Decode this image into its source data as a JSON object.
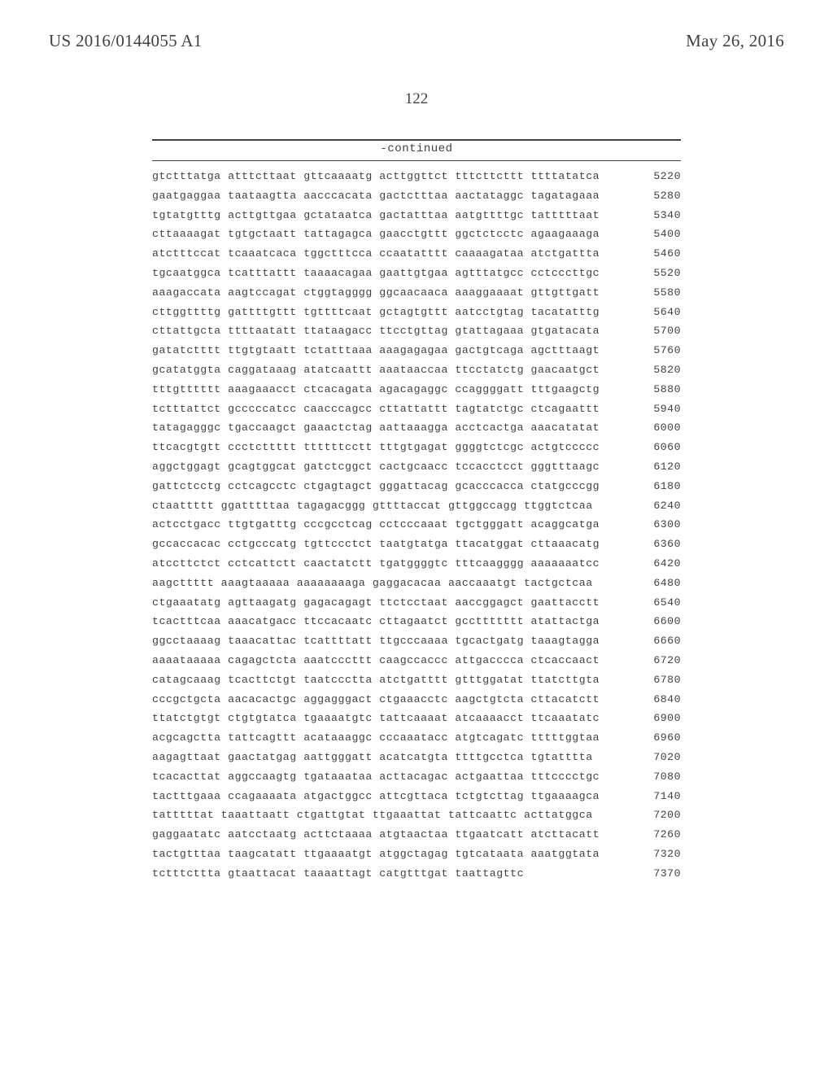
{
  "header": {
    "patent_number": "US 2016/0144055 A1",
    "date": "May 26, 2016"
  },
  "page_number": "122",
  "continued_label": "-continued",
  "sequence": {
    "rows": [
      {
        "seq": "gtctttatga atttcttaat gttcaaaatg acttggttct tttcttcttt ttttatatca",
        "pos": "5220"
      },
      {
        "seq": "gaatgaggaa taataagtta aacccacata gactctttaa aactataggc tagatagaaa",
        "pos": "5280"
      },
      {
        "seq": "tgtatgtttg acttgttgaa gctataatca gactatttaa aatgttttgc tatttttaat",
        "pos": "5340"
      },
      {
        "seq": "cttaaaagat tgtgctaatt tattagagca gaacctgttt ggctctcctc agaagaaaga",
        "pos": "5400"
      },
      {
        "seq": "atctttccat tcaaatcaca tggctttcca ccaatatttt caaaagataa atctgattta",
        "pos": "5460"
      },
      {
        "seq": "tgcaatggca tcatttattt taaaacagaa gaattgtgaa agtttatgcc cctcccttgc",
        "pos": "5520"
      },
      {
        "seq": "aaagaccata aagtccagat ctggtagggg ggcaacaaca aaaggaaaat gttgttgatt",
        "pos": "5580"
      },
      {
        "seq": "cttggttttg gattttgttt tgttttcaat gctagtgttt aatcctgtag tacatatttg",
        "pos": "5640"
      },
      {
        "seq": "cttattgcta ttttaatatt ttataagacc ttcctgttag gtattagaaa gtgatacata",
        "pos": "5700"
      },
      {
        "seq": "gatatctttt ttgtgtaatt tctatttaaa aaagagagaa gactgtcaga agctttaagt",
        "pos": "5760"
      },
      {
        "seq": "gcatatggta caggataaag atatcaattt aaataaccaa ttcctatctg gaacaatgct",
        "pos": "5820"
      },
      {
        "seq": "tttgtttttt aaagaaacct ctcacagata agacagaggc ccaggggatt tttgaagctg",
        "pos": "5880"
      },
      {
        "seq": "tctttattct gcccccatcc caacccagcc cttattattt tagtatctgc ctcagaattt",
        "pos": "5940"
      },
      {
        "seq": "tatagagggc tgaccaagct gaaactctag aattaaagga acctcactga aaacatatat",
        "pos": "6000"
      },
      {
        "seq": "ttcacgtgtt ccctcttttt ttttttcctt tttgtgagat ggggtctcgc actgtccccc",
        "pos": "6060"
      },
      {
        "seq": "aggctggagt gcagtggcat gatctcggct cactgcaacc tccacctcct gggtttaagc",
        "pos": "6120"
      },
      {
        "seq": "gattctcctg cctcagcctc ctgagtagct gggattacag gcacccacca ctatgcccgg",
        "pos": "6180"
      },
      {
        "seq": "ctaattttt ggatttttaa tagagacggg gttttaccat gttggccagg ttggtctcaa",
        "pos": "6240"
      },
      {
        "seq": "actcctgacc ttgtgatttg cccgcctcag cctcccaaat tgctgggatt acaggcatga",
        "pos": "6300"
      },
      {
        "seq": "gccaccacac cctgcccatg tgttccctct taatgtatga ttacatggat cttaaacatg",
        "pos": "6360"
      },
      {
        "seq": "atccttctct cctcattctt caactatctt tgatggggtc tttcaagggg aaaaaaatcc",
        "pos": "6420"
      },
      {
        "seq": "aagcttttt aaagtaaaaa aaaaaaaaga gaggacacaa aaccaaatgt tactgctcaa",
        "pos": "6480"
      },
      {
        "seq": "ctgaaatatg agttaagatg gagacagagt ttctcctaat aaccggagct gaattacctt",
        "pos": "6540"
      },
      {
        "seq": "tcactttcaa aaacatgacc ttccacaatc cttagaatct gccttttttt atattactga",
        "pos": "6600"
      },
      {
        "seq": "ggcctaaaag taaacattac tcattttatt ttgcccaaaa tgcactgatg taaagtagga",
        "pos": "6660"
      },
      {
        "seq": "aaaataaaaa cagagctcta aaatcccttt caagccaccc attgacccca ctcaccaact",
        "pos": "6720"
      },
      {
        "seq": "catagcaaag tcacttctgt taatccctta atctgatttt gtttggatat ttatcttgta",
        "pos": "6780"
      },
      {
        "seq": "cccgctgcta aacacactgc aggagggact ctgaaacctc aagctgtcta cttacatctt",
        "pos": "6840"
      },
      {
        "seq": "ttatctgtgt ctgtgtatca tgaaaatgtc tattcaaaat atcaaaacct ttcaaatatc",
        "pos": "6900"
      },
      {
        "seq": "acgcagctta tattcagttt acataaaggc cccaaatacc atgtcagatc tttttggtaa",
        "pos": "6960"
      },
      {
        "seq": "aagagttaat gaactatgag aattgggatt acatcatgta ttttgcctca tgtatttta",
        "pos": "7020"
      },
      {
        "seq": "tcacacttat aggccaagtg tgataaataa acttacagac actgaattaa tttcccctgc",
        "pos": "7080"
      },
      {
        "seq": "tactttgaaa ccagaaaata atgactggcc attcgttaca tctgtcttag ttgaaaagca",
        "pos": "7140"
      },
      {
        "seq": "tatttttat taaattaatt ctgattgtat ttgaaattat tattcaattc acttatggca",
        "pos": "7200"
      },
      {
        "seq": "gaggaatatc aatcctaatg acttctaaaa atgtaactaa ttgaatcatt atcttacatt",
        "pos": "7260"
      },
      {
        "seq": "tactgtttaa taagcatatt ttgaaaatgt atggctagag tgtcataata aaatggtata",
        "pos": "7320"
      },
      {
        "seq": "tctttcttta gtaattacat taaaattagt catgtttgat taattagttc",
        "pos": "7370"
      }
    ]
  },
  "style": {
    "font_mono": "Courier New",
    "font_serif": "Georgia",
    "text_color": "#414141",
    "bg_color": "#ffffff",
    "sequence_fontsize": 13.2,
    "header_fontsize": 21,
    "pagenum_fontsize": 19,
    "continued_fontsize": 14,
    "content_width": 650
  }
}
